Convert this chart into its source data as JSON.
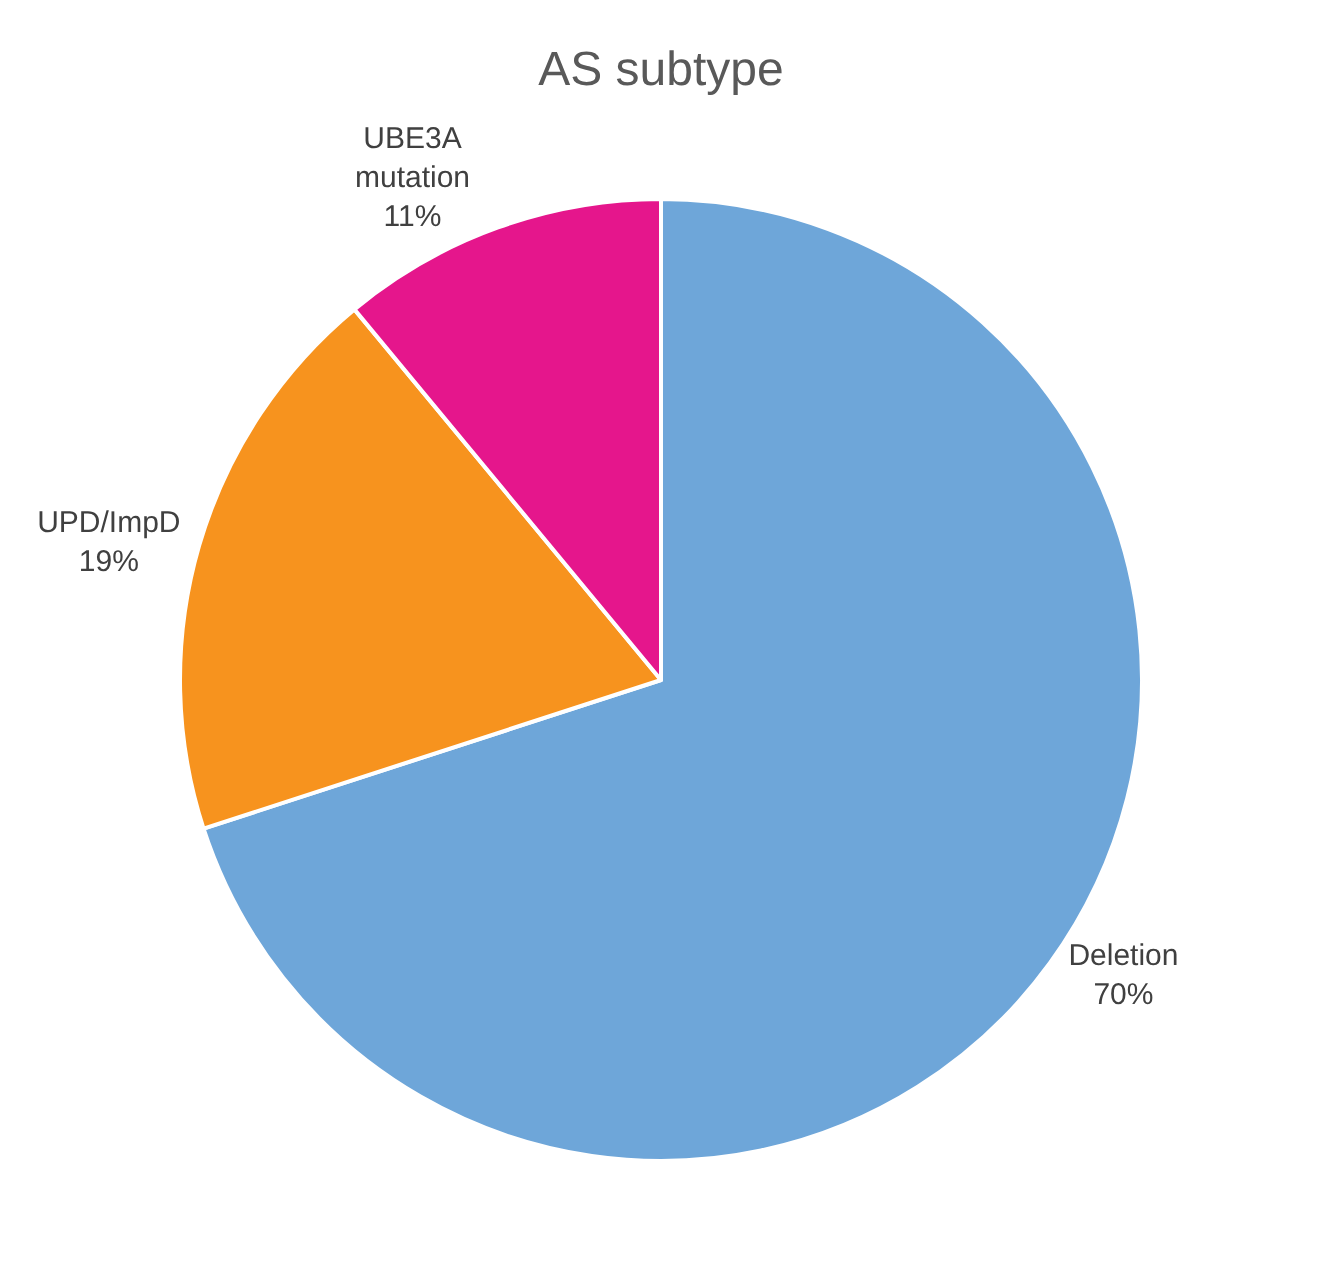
{
  "chart_data": {
    "type": "pie",
    "title": "AS subtype",
    "categories": [
      "Deletion",
      "UPD/ImpD",
      "UBE3A mutation"
    ],
    "values": [
      70,
      19,
      11
    ],
    "value_labels": [
      "70%",
      "19%",
      "11%"
    ],
    "colors": [
      "#6ea6d9",
      "#f7931e",
      "#e5168c"
    ],
    "legend": false
  }
}
